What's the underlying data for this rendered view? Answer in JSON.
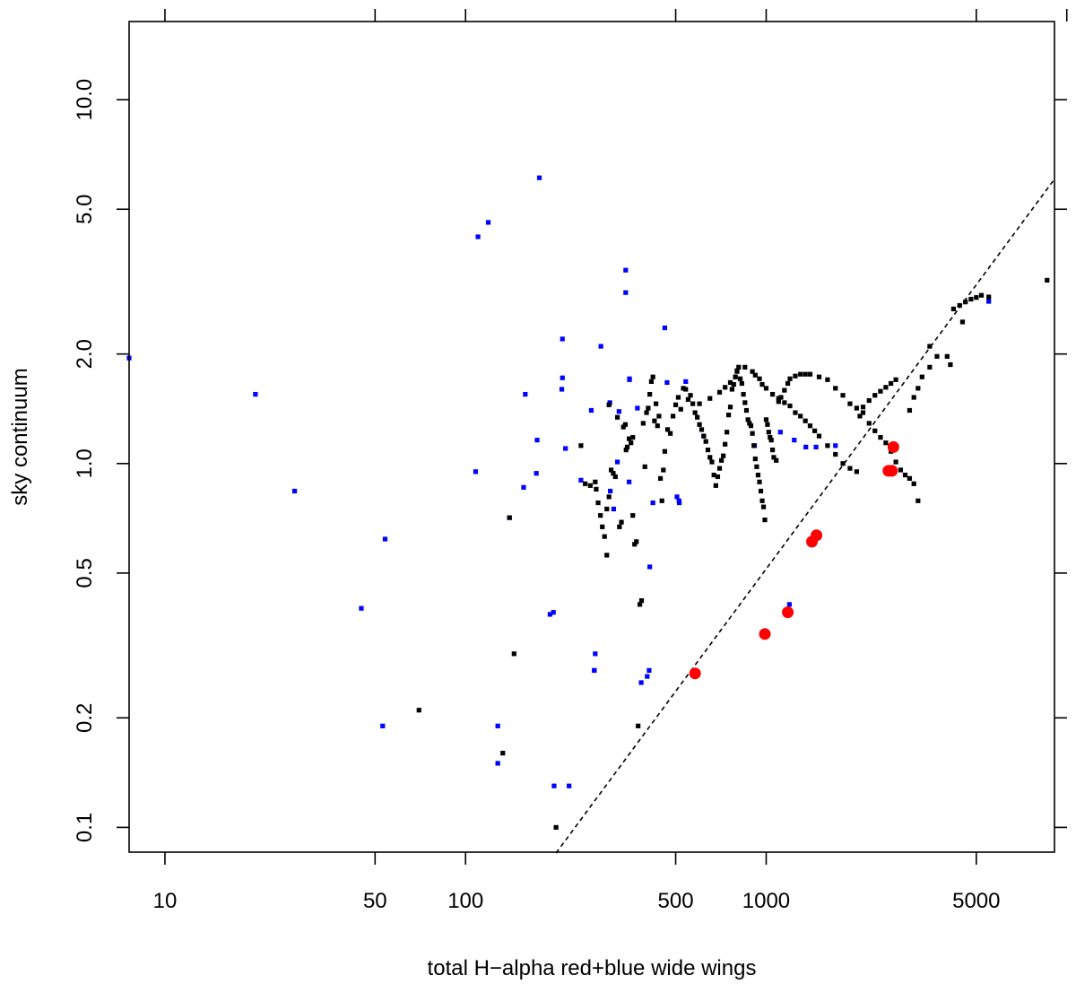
{
  "chart_data": {
    "type": "scatter",
    "title": "",
    "xlabel": "total H−alpha red+blue wide wings",
    "ylabel": "sky continuum",
    "xscale": "log",
    "yscale": "log",
    "xlim": [
      7.6,
      9100
    ],
    "ylim": [
      0.0855,
      16.4
    ],
    "x_ticks": [
      10,
      50,
      100,
      500,
      1000,
      5000
    ],
    "x_tick_labels": [
      "10",
      "50",
      "100",
      "500",
      "1000",
      "5000"
    ],
    "x_top_ticks": [
      10,
      50,
      100,
      500,
      1000,
      5000,
      10000
    ],
    "y_ticks": [
      0.1,
      0.2,
      0.5,
      1.0,
      2.0,
      5.0,
      10.0
    ],
    "y_tick_labels": [
      "0.1",
      "0.2",
      "0.5",
      "1.0",
      "2.0",
      "5.0",
      "10.0"
    ],
    "grid": false,
    "legend": "none",
    "reference_line": {
      "style": "dashed",
      "color": "#000000",
      "x": [
        200,
        9100
      ],
      "y": [
        0.085,
        6.05
      ]
    },
    "series": [
      {
        "color": "#0000ff",
        "marker": "square",
        "x": [
          7.6,
          20,
          27,
          45,
          53,
          54,
          108,
          110,
          119,
          128,
          128,
          140,
          156,
          158,
          172,
          173,
          176,
          191,
          196,
          197,
          209,
          210,
          210,
          215,
          221,
          242,
          262,
          268,
          268,
          270,
          282,
          302,
          303,
          311,
          320,
          324,
          341,
          341,
          350,
          351,
          351,
          373,
          384,
          402,
          408,
          410,
          420,
          460,
          468,
          505,
          513,
          514,
          540,
          620,
          915,
          1115,
          1195,
          1240,
          1355,
          1465,
          1700,
          5500
        ],
        "y": [
          1.95,
          1.55,
          0.84,
          0.4,
          0.19,
          0.62,
          0.95,
          4.2,
          4.6,
          0.15,
          0.19,
          0.71,
          0.86,
          1.55,
          0.94,
          1.16,
          6.1,
          0.385,
          0.39,
          0.13,
          1.6,
          1.72,
          2.2,
          1.1,
          0.13,
          0.9,
          1.4,
          0.27,
          0.27,
          0.3,
          2.1,
          1.47,
          0.84,
          0.75,
          1.01,
          1.39,
          3.4,
          2.95,
          0.89,
          1.71,
          1.7,
          1.42,
          0.25,
          0.26,
          0.27,
          0.52,
          0.78,
          2.36,
          1.67,
          0.81,
          0.79,
          0.78,
          1.68,
          1.19,
          1.12,
          1.22,
          0.41,
          1.16,
          1.11,
          1.11,
          1.12,
          2.79
        ]
      },
      {
        "color": "#000000",
        "marker": "square",
        "x": [
          70,
          133,
          140,
          145,
          200,
          242,
          250,
          260,
          270,
          272,
          276,
          281,
          285,
          290,
          295,
          295,
          300,
          300,
          305,
          310,
          315,
          320,
          325,
          330,
          335,
          340,
          342,
          345,
          350,
          355,
          360,
          360,
          365,
          370,
          375,
          380,
          385,
          390,
          395,
          400,
          405,
          410,
          415,
          420,
          425,
          430,
          435,
          440,
          445,
          450,
          455,
          460,
          470,
          480,
          490,
          500,
          510,
          520,
          530,
          540,
          550,
          560,
          570,
          580,
          590,
          600,
          610,
          620,
          630,
          640,
          650,
          660,
          670,
          680,
          690,
          700,
          710,
          720,
          730,
          740,
          750,
          760,
          770,
          780,
          790,
          800,
          810,
          820,
          830,
          840,
          850,
          860,
          870,
          880,
          890,
          900,
          910,
          920,
          930,
          940,
          950,
          960,
          970,
          980,
          990,
          1000,
          1010,
          1020,
          1030,
          1040,
          1050,
          1060,
          1080,
          1100,
          1120,
          1150,
          1180,
          1200,
          1250,
          1300,
          1350,
          1400,
          1500,
          1600,
          1700,
          1800,
          1900,
          2000,
          2100,
          2200,
          2300,
          2400,
          2500,
          2600,
          2700,
          2800,
          2900,
          3000,
          3100,
          3200,
          3500,
          4000,
          4200,
          4400,
          4600,
          4800,
          5000,
          5200,
          5500,
          8600,
          600,
          650,
          700,
          730,
          760,
          790,
          800,
          850,
          900,
          920,
          950,
          970,
          1000,
          1050,
          1100,
          1150,
          1200,
          1250,
          1300,
          1350,
          1400,
          1450,
          1500,
          1600,
          1700,
          1800,
          1900,
          2000,
          2050,
          2100,
          2200,
          2300,
          2400,
          2500,
          2600,
          2700,
          3000,
          3100,
          3200,
          3300,
          3500,
          3700,
          4100,
          4500
        ],
        "y": [
          0.21,
          0.16,
          0.71,
          0.3,
          0.1,
          1.12,
          0.88,
          0.87,
          0.89,
          0.85,
          0.78,
          0.72,
          0.67,
          0.63,
          0.56,
          0.75,
          0.81,
          1.45,
          0.96,
          0.94,
          0.92,
          1.34,
          0.67,
          0.69,
          1.26,
          1.28,
          1.09,
          1.11,
          1.17,
          1.14,
          1.18,
          0.72,
          0.6,
          0.61,
          0.19,
          0.41,
          0.42,
          1.29,
          0.98,
          1.38,
          1.42,
          1.55,
          1.68,
          1.73,
          1.31,
          1.46,
          1.27,
          1.35,
          0.91,
          0.79,
          0.96,
          1.08,
          1.24,
          1.21,
          1.35,
          1.45,
          1.52,
          1.41,
          1.61,
          1.6,
          1.5,
          1.54,
          1.46,
          1.38,
          1.34,
          1.28,
          1.24,
          1.19,
          1.15,
          1.09,
          1.04,
          1.01,
          0.93,
          0.87,
          0.92,
          0.97,
          1.02,
          1.05,
          1.13,
          1.22,
          1.36,
          1.43,
          1.6,
          1.65,
          1.73,
          1.79,
          1.84,
          1.71,
          1.66,
          1.55,
          1.47,
          1.4,
          1.32,
          1.29,
          1.27,
          1.21,
          1.12,
          1.03,
          0.98,
          0.93,
          0.89,
          0.84,
          0.79,
          0.76,
          0.7,
          1.32,
          1.28,
          1.22,
          1.18,
          1.16,
          1.09,
          1.04,
          1.02,
          1.48,
          1.52,
          1.59,
          1.66,
          1.71,
          1.74,
          1.76,
          1.76,
          1.76,
          1.73,
          1.7,
          1.61,
          1.54,
          1.46,
          1.42,
          1.38,
          1.29,
          1.23,
          1.18,
          1.14,
          1.08,
          1.01,
          0.96,
          0.93,
          0.91,
          0.88,
          0.79,
          2.1,
          1.97,
          2.66,
          2.72,
          2.78,
          2.83,
          2.86,
          2.9,
          2.87,
          3.19,
          1.46,
          1.51,
          1.57,
          1.62,
          1.67,
          1.73,
          1.8,
          1.84,
          1.79,
          1.75,
          1.71,
          1.65,
          1.61,
          1.55,
          1.51,
          1.47,
          1.44,
          1.38,
          1.35,
          1.31,
          1.27,
          1.23,
          1.19,
          1.12,
          1.06,
          1.0,
          0.97,
          0.95,
          1.35,
          1.43,
          1.49,
          1.54,
          1.58,
          1.62,
          1.66,
          1.7,
          1.4,
          1.52,
          1.61,
          1.73,
          1.84,
          1.97,
          1.87,
          2.45
        ]
      },
      {
        "color": "#ff0000",
        "marker": "circle",
        "x": [
          580,
          990,
          1180,
          1420,
          1470,
          2550,
          2620,
          2650
        ],
        "y": [
          0.265,
          0.34,
          0.39,
          0.61,
          0.635,
          0.955,
          0.955,
          1.11
        ]
      }
    ]
  }
}
